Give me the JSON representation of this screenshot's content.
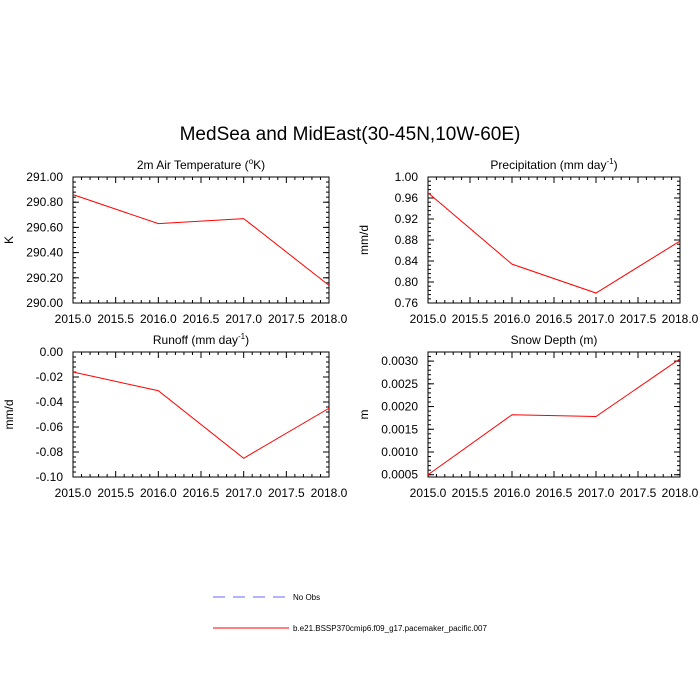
{
  "figure": {
    "title": "MedSea and MidEast(30-45N,10W-60E)"
  },
  "legend": [
    {
      "label": "No Obs",
      "style": "dashed",
      "color": "#6666ff"
    },
    {
      "label": "b.e21.BSSP370cmip6.f09_g17.pacemaker_pacific.007",
      "style": "solid",
      "color": "#ff0000"
    }
  ],
  "chart_data": [
    {
      "type": "line",
      "title": "2m Air Temperature (°K)",
      "title_parts": [
        "2m Air Temperature (",
        "o",
        "K)"
      ],
      "ylabel": "K",
      "xlim": [
        2015,
        2018
      ],
      "ylim": [
        290.0,
        291.0
      ],
      "x_ticks": [
        "2015.0",
        "2015.5",
        "2016.0",
        "2016.5",
        "2017.0",
        "2017.5",
        "2018.0"
      ],
      "y_ticks": [
        "291.00",
        "290.80",
        "290.60",
        "290.40",
        "290.20",
        "290.00"
      ],
      "x": [
        2015,
        2016,
        2017,
        2018
      ],
      "series": [
        {
          "name": "b.e21.BSSP370cmip6.f09_g17.pacemaker_pacific.007",
          "color": "#ff0000",
          "values": [
            290.86,
            290.63,
            290.67,
            290.14
          ]
        }
      ]
    },
    {
      "type": "line",
      "title": "Precipitation (mm day-1)",
      "title_parts": [
        "Precipitation (mm day",
        "-1",
        ")"
      ],
      "ylabel": "mm/d",
      "xlim": [
        2015,
        2018
      ],
      "ylim": [
        0.76,
        1.0
      ],
      "x_ticks": [
        "2015.0",
        "2015.5",
        "2016.0",
        "2016.5",
        "2017.0",
        "2017.5",
        "2018.0"
      ],
      "y_ticks": [
        "1.00",
        "0.96",
        "0.92",
        "0.88",
        "0.84",
        "0.80",
        "0.76"
      ],
      "x": [
        2015,
        2016,
        2017,
        2018
      ],
      "series": [
        {
          "name": "b.e21.BSSP370cmip6.f09_g17.pacemaker_pacific.007",
          "color": "#ff0000",
          "values": [
            0.97,
            0.834,
            0.779,
            0.878
          ]
        }
      ]
    },
    {
      "type": "line",
      "title": "Runoff (mm day-1)",
      "title_parts": [
        "Runoff (mm day",
        "-1",
        ")"
      ],
      "ylabel": "mm/d",
      "xlim": [
        2015,
        2018
      ],
      "ylim": [
        -0.1,
        0.0
      ],
      "x_ticks": [
        "2015.0",
        "2015.5",
        "2016.0",
        "2016.5",
        "2017.0",
        "2017.5",
        "2018.0"
      ],
      "y_ticks": [
        "0.00",
        "-0.02",
        "-0.04",
        "-0.06",
        "-0.08",
        "-0.10"
      ],
      "x": [
        2015,
        2016,
        2017,
        2018
      ],
      "series": [
        {
          "name": "b.e21.BSSP370cmip6.f09_g17.pacemaker_pacific.007",
          "color": "#ff0000",
          "values": [
            -0.016,
            -0.031,
            -0.085,
            -0.045
          ]
        }
      ]
    },
    {
      "type": "line",
      "title": "Snow Depth (m)",
      "title_parts": [
        "Snow Depth (m)",
        "",
        ""
      ],
      "ylabel": "m",
      "xlim": [
        2015,
        2018
      ],
      "ylim": [
        0.00045,
        0.0032
      ],
      "x_ticks": [
        "2015.0",
        "2015.5",
        "2016.0",
        "2016.5",
        "2017.0",
        "2017.5",
        "2018.0"
      ],
      "y_ticks": [
        "0.0030",
        "0.0025",
        "0.0020",
        "0.0015",
        "0.0010",
        "0.0005"
      ],
      "x": [
        2015,
        2016,
        2017,
        2018
      ],
      "series": [
        {
          "name": "b.e21.BSSP370cmip6.f09_g17.pacemaker_pacific.007",
          "color": "#ff0000",
          "values": [
            0.0005,
            0.00182,
            0.00178,
            0.00305
          ]
        }
      ]
    }
  ]
}
